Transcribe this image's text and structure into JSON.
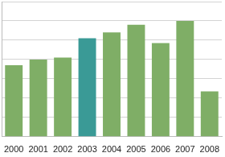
{
  "chart_data": {
    "type": "bar",
    "categories": [
      "2000",
      "2001",
      "2002",
      "2003",
      "2004",
      "2005",
      "2006",
      "2007",
      "2008"
    ],
    "values": [
      3.7,
      4.0,
      4.1,
      5.1,
      5.4,
      5.8,
      4.85,
      6.0,
      2.35
    ],
    "colors": [
      "#7fae66",
      "#7fae66",
      "#7fae66",
      "#3a9a96",
      "#7fae66",
      "#7fae66",
      "#7fae66",
      "#7fae66",
      "#7fae66"
    ],
    "ylim": [
      0,
      7
    ],
    "yticks": [
      0,
      1,
      2,
      3,
      4,
      5,
      6,
      7
    ],
    "grid": true,
    "tick_labels": "x"
  }
}
